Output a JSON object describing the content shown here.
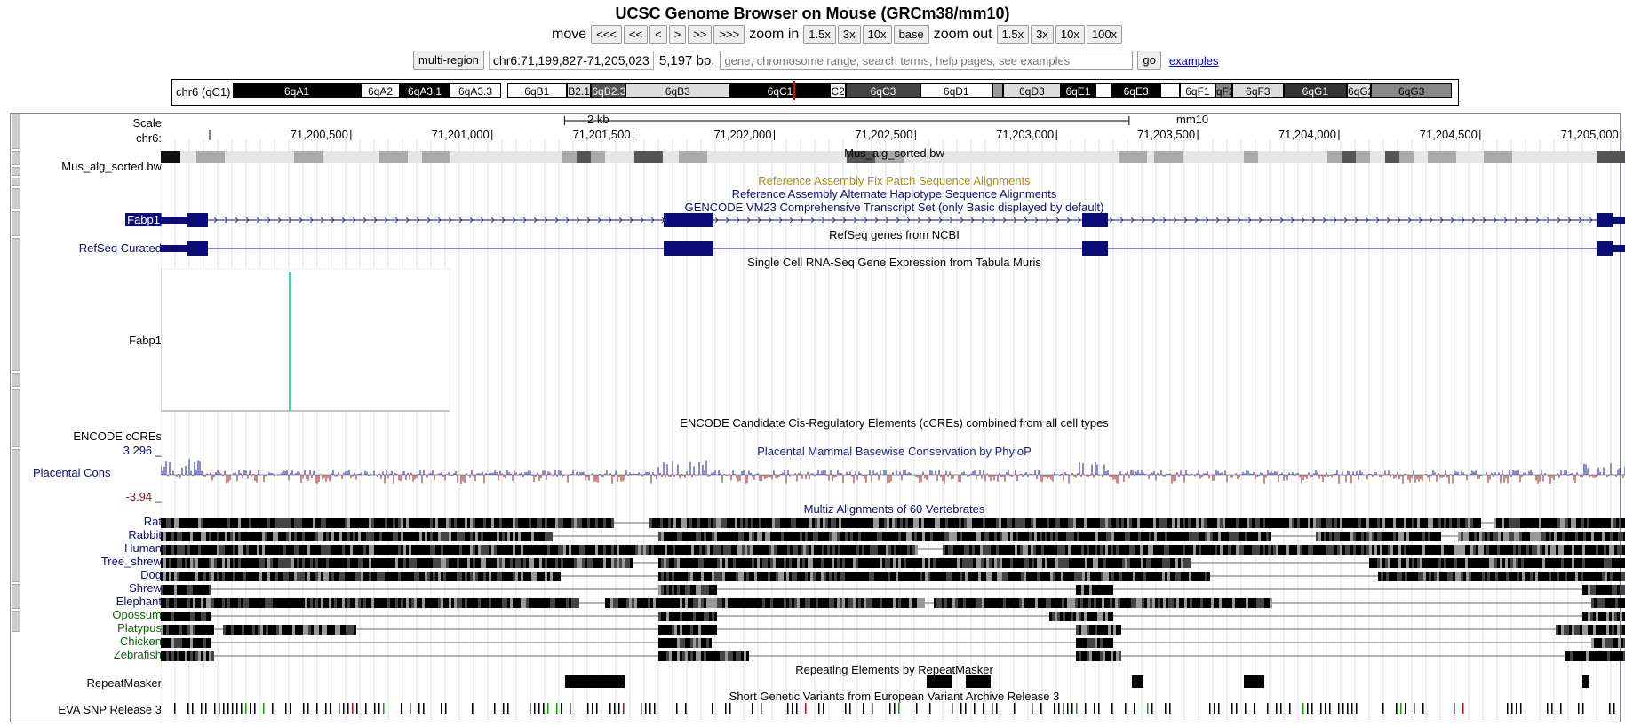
{
  "header": {
    "title": "UCSC Genome Browser on Mouse (GRCm38/mm10)"
  },
  "nav": {
    "move_label": "move",
    "move_buttons": [
      "<<<",
      "<<",
      "<",
      ">",
      ">>",
      ">>>"
    ],
    "zoom_in_label": "zoom in",
    "zoom_in_buttons": [
      "1.5x",
      "3x",
      "10x",
      "base"
    ],
    "zoom_out_label": "zoom out",
    "zoom_out_buttons": [
      "1.5x",
      "3x",
      "10x",
      "100x"
    ]
  },
  "position": {
    "multi_region": "multi-region",
    "range": "chr6:71,199,827-71,205,023",
    "size": "5,197 bp.",
    "search_placeholder": "gene, chromosome range, search terms, help pages, see examples",
    "go": "go",
    "examples": "examples"
  },
  "ideogram": {
    "chrom": "chr6 (qC1)",
    "bands": [
      {
        "n": "6qA1",
        "s": 0,
        "e": 10.5,
        "c": "#000"
      },
      {
        "n": "6qA2",
        "s": 10.5,
        "e": 13.7,
        "c": "#fff"
      },
      {
        "n": "6qA3.1",
        "s": 13.7,
        "e": 17.8,
        "c": "#000"
      },
      {
        "n": "6qA3.3",
        "s": 17.8,
        "e": 22.0,
        "c": "#fff"
      },
      {
        "n": "6qB1",
        "s": 22.5,
        "e": 27.4,
        "c": "#fff"
      },
      {
        "n": "B2.1",
        "s": 27.4,
        "e": 29.4,
        "c": "#ddd"
      },
      {
        "n": "6qB2.3",
        "s": 29.4,
        "e": 32.2,
        "c": "#555"
      },
      {
        "n": "6qB3",
        "s": 32.2,
        "e": 40.8,
        "c": "#ddd"
      },
      {
        "n": "6qC1",
        "s": 40.8,
        "e": 49.0,
        "c": "#000"
      },
      {
        "n": "C2",
        "s": 49.0,
        "e": 50.3,
        "c": "#fff"
      },
      {
        "n": "6qC3",
        "s": 50.3,
        "e": 56.4,
        "c": "#444"
      },
      {
        "n": "6qD1",
        "s": 56.4,
        "e": 62.3,
        "c": "#fff"
      },
      {
        "n": "",
        "s": 62.3,
        "e": 63.2,
        "c": "#999"
      },
      {
        "n": "6qD3",
        "s": 63.2,
        "e": 67.9,
        "c": "#ddd"
      },
      {
        "n": "6qE1",
        "s": 67.9,
        "e": 70.8,
        "c": "#000"
      },
      {
        "n": "",
        "s": 70.8,
        "e": 72.1,
        "c": "#fff"
      },
      {
        "n": "6qE3",
        "s": 72.1,
        "e": 76.1,
        "c": "#000"
      },
      {
        "n": "",
        "s": 76.1,
        "e": 77.7,
        "c": "#fff"
      },
      {
        "n": "6qF1",
        "s": 77.7,
        "e": 80.6,
        "c": "#fff"
      },
      {
        "n": "qF2",
        "s": 80.6,
        "e": 82.0,
        "c": "#888"
      },
      {
        "n": "6qF3",
        "s": 82.0,
        "e": 86.2,
        "c": "#ddd"
      },
      {
        "n": "6qG1",
        "s": 86.2,
        "e": 91.4,
        "c": "#333"
      },
      {
        "n": "6qG2",
        "s": 91.4,
        "e": 93.4,
        "c": "#ddd"
      },
      {
        "n": "6qG3",
        "s": 93.4,
        "e": 100,
        "c": "#888"
      }
    ],
    "current_pct": 46.0
  },
  "scale": {
    "label": "Scale",
    "chr_label": "chr6:",
    "bar_label": "2 kb",
    "assembly": "mm10"
  },
  "ruler": {
    "start": 71199827,
    "end": 71205023,
    "ticks": [
      "71,200,500",
      "71,201,000",
      "71,201,500",
      "71,202,000",
      "71,202,500",
      "71,203,000",
      "71,203,500",
      "71,204,000",
      "71,204,500",
      "71,205,000"
    ],
    "tick_values": [
      71200500,
      71201000,
      71201500,
      71202000,
      71202500,
      71203000,
      71203500,
      71204000,
      71204500,
      71205000
    ],
    "first_tick": 71200000
  },
  "tracks": {
    "bw": {
      "label": "Mus_alg_sorted.bw",
      "title": "Mus_alg_sorted.bw"
    },
    "fix_patch": "Reference Assembly Fix Patch Sequence Alignments",
    "alt_hap": "Reference Assembly Alternate Haplotype Sequence Alignments",
    "gencode": {
      "title": "GENCODE VM23 Comprehensive Transcript Set (only Basic displayed by default)",
      "gene": "Fabp1"
    },
    "refseq": {
      "title": "RefSeq genes from NCBI",
      "label": "RefSeq Curated"
    },
    "tabula": {
      "title": "Single Cell RNA-Seq Gene Expression from Tabula Muris",
      "label": "Fabp1"
    },
    "encode": {
      "title": "ENCODE Candidate Cis-Regulatory Elements (cCREs) combined from all cell types",
      "label": "ENCODE cCREs"
    },
    "phylop": {
      "title": "Placental Mammal Basewise Conservation by PhyloP",
      "label": "Placental Cons",
      "max": "3.296 _",
      "min": "-3.94 _"
    },
    "multiz": {
      "title": "Multiz Alignments of 60 Vertebrates",
      "species": [
        "Rat",
        "Rabbit",
        "Human",
        "Tree_shrew",
        "Dog",
        "Shrew",
        "Elephant",
        "Opossum",
        "Platypus",
        "Chicken",
        "Zebrafish"
      ]
    },
    "repeat": {
      "title": "Repeating Elements by RepeatMasker",
      "label": "RepeatMasker"
    },
    "eva": {
      "title": "Short Genetic Variants from European Variant Archive Release 3",
      "label": "EVA SNP Release 3"
    }
  },
  "colors": {
    "gene": "#0c0c78",
    "fix": "#af8f10",
    "alt": "#0c0c78",
    "phylop_pos": "#1a1a8c",
    "phylop_neg": "#8c1a1a",
    "tabula": "#1ee6b0",
    "mammal": "#0c0c78",
    "other": "#106010"
  }
}
